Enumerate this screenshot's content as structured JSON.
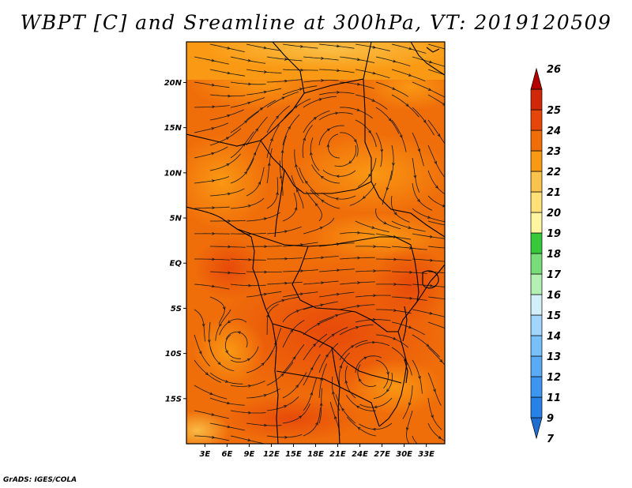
{
  "title": "WBPT [C] and Sreamline at 300hPa, VT: 2019120509",
  "credit": "GrADS: IGES/COLA",
  "map": {
    "lat_labels": [
      {
        "label": "20N",
        "lat": 20
      },
      {
        "label": "15N",
        "lat": 15
      },
      {
        "label": "10N",
        "lat": 10
      },
      {
        "label": "5N",
        "lat": 5
      },
      {
        "label": "EQ",
        "lat": 0
      },
      {
        "label": "5S",
        "lat": -5
      },
      {
        "label": "10S",
        "lat": -10
      },
      {
        "label": "15S",
        "lat": -15
      }
    ],
    "lon_labels": [
      {
        "label": "3E",
        "lon": 3
      },
      {
        "label": "6E",
        "lon": 6
      },
      {
        "label": "9E",
        "lon": 9
      },
      {
        "label": "12E",
        "lon": 12
      },
      {
        "label": "15E",
        "lon": 15
      },
      {
        "label": "18E",
        "lon": 18
      },
      {
        "label": "21E",
        "lon": 21
      },
      {
        "label": "24E",
        "lon": 24
      },
      {
        "label": "27E",
        "lon": 27
      },
      {
        "label": "30E",
        "lon": 30
      },
      {
        "label": "33E",
        "lon": 33
      }
    ],
    "lon_range": [
      0.5,
      35.5
    ],
    "lat_range": [
      -20,
      24.5
    ]
  },
  "colorbar": {
    "levels": [
      "7",
      "9",
      "11",
      "12",
      "13",
      "14",
      "15",
      "16",
      "17",
      "18",
      "19",
      "20",
      "21",
      "22",
      "23",
      "24",
      "25",
      "26"
    ],
    "colors": [
      "#1e6ed2",
      "#2882e6",
      "#3c96f0",
      "#5aaaf5",
      "#78c0fa",
      "#a0d6fc",
      "#d2f0fa",
      "#b4f0b4",
      "#78dc78",
      "#37c83c",
      "#fff5a0",
      "#ffe178",
      "#fac34b",
      "#fa9a14",
      "#f06e0a",
      "#e6460a",
      "#d2280a",
      "#b40000"
    ]
  }
}
